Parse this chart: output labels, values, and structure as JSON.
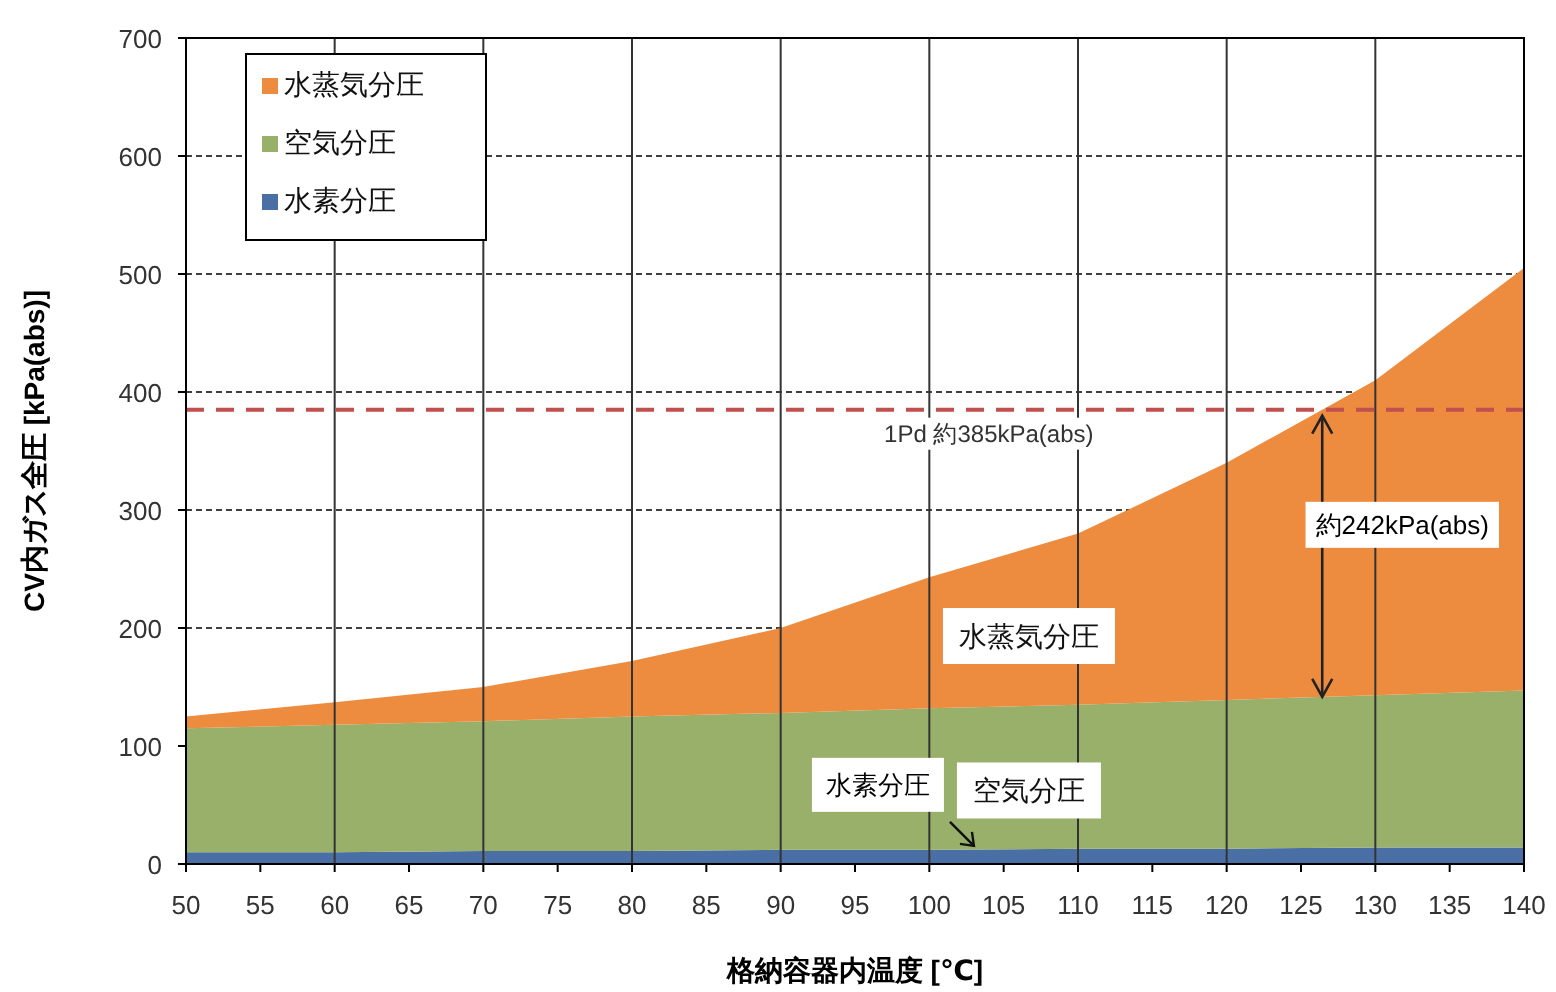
{
  "chart_data": {
    "type": "area",
    "stacked": true,
    "xlabel": "格納容器内温度 [℃]",
    "ylabel": "CV内ガス全圧 [kPa(abs)]",
    "x": [
      50,
      60,
      70,
      80,
      90,
      100,
      110,
      120,
      130,
      140
    ],
    "series": [
      {
        "name": "水素分圧",
        "color": "#4a6fa5",
        "values": [
          10,
          10,
          11,
          11,
          12,
          12,
          13,
          13,
          14,
          14
        ]
      },
      {
        "name": "空気分圧",
        "color": "#98b06a",
        "values": [
          105,
          108,
          110,
          114,
          116,
          120,
          122,
          126,
          129,
          133
        ]
      },
      {
        "name": "水蒸気分圧",
        "color": "#ed8b3f",
        "values": [
          10,
          19,
          29,
          47,
          72,
          111,
          145,
          201,
          267,
          358
        ]
      }
    ],
    "xlim": [
      50,
      140
    ],
    "xticks": [
      50,
      55,
      60,
      65,
      70,
      75,
      80,
      85,
      90,
      95,
      100,
      105,
      110,
      115,
      120,
      125,
      130,
      135,
      140
    ],
    "ylim": [
      0,
      700
    ],
    "yticks": [
      0,
      100,
      200,
      300,
      400,
      500,
      600,
      700
    ],
    "grid": true,
    "legend": "top left",
    "ref_lines": [
      {
        "axis": "y",
        "value": 385,
        "label": "1Pd 約385kPa(abs)",
        "color": "#c0504d",
        "line_style": "dashed"
      }
    ],
    "annotations": [
      "約242kPa(abs)",
      "水蒸気分圧",
      "空気分圧",
      {
        "text": "水素分圧",
        "x": 103,
        "y": 12
      }
    ]
  }
}
